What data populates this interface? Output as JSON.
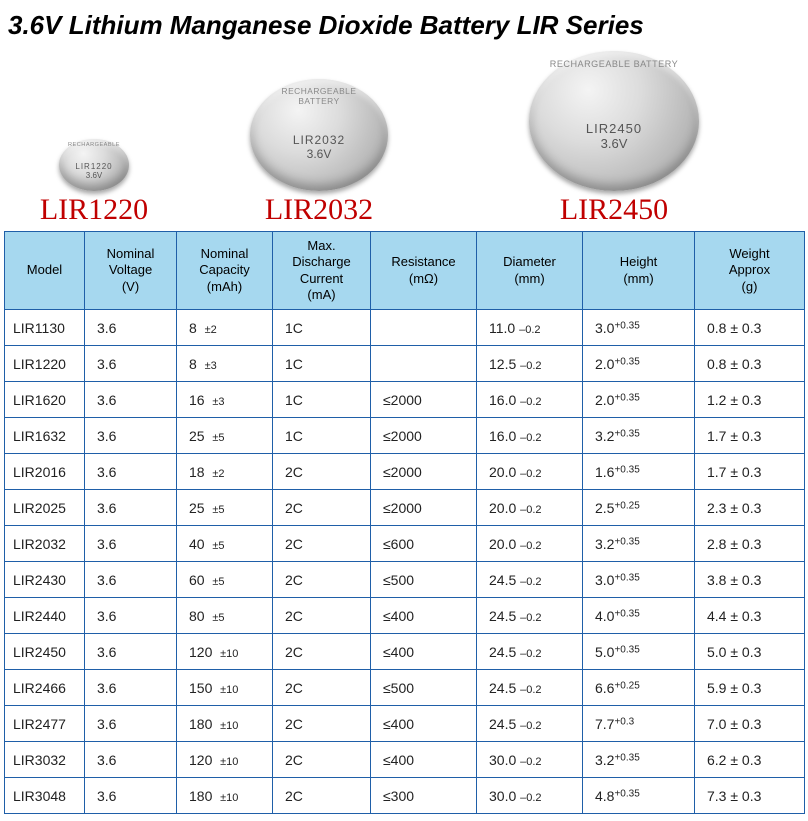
{
  "title": "3.6V Lithium Manganese Dioxide Battery LIR Series",
  "batteries": [
    {
      "label": "LIR1220",
      "coin_model": "LIR1220",
      "coin_volt": "3.6V",
      "arc": "RECHARGEABLE"
    },
    {
      "label": "LIR2032",
      "coin_model": "LIR2032",
      "coin_volt": "3.6V",
      "arc": "RECHARGEABLE BATTERY"
    },
    {
      "label": "LIR2450",
      "coin_model": "LIR2450",
      "coin_volt": "3.6V",
      "arc": "RECHARGEABLE BATTERY"
    }
  ],
  "headers": {
    "model": "Model",
    "voltage": "Nominal\nVoltage\n(V)",
    "capacity": "Nominal\nCapacity\n(mAh)",
    "discharge": "Max.\nDischarge\nCurrent\n(mA)",
    "resistance": "Resistance\n(mΩ)",
    "diameter": "Diameter\n(mm)",
    "height": "Height\n(mm)",
    "weight": "Weight\nApprox\n(g)"
  },
  "rows": [
    {
      "model": "LIR1130",
      "v": "3.6",
      "cap": "8",
      "cap_tol": "±2",
      "dis": "1C",
      "res": "",
      "dia": "11.0",
      "dia_tol": "–0.2",
      "h": "3.0",
      "h_tol": "+0.35",
      "w": "0.8 ± 0.3"
    },
    {
      "model": "LIR1220",
      "v": "3.6",
      "cap": "8",
      "cap_tol": "±3",
      "dis": "1C",
      "res": "",
      "dia": "12.5",
      "dia_tol": "–0.2",
      "h": "2.0",
      "h_tol": "+0.35",
      "w": "0.8 ± 0.3"
    },
    {
      "model": "LIR1620",
      "v": "3.6",
      "cap": "16",
      "cap_tol": "±3",
      "dis": "1C",
      "res": "≤2000",
      "dia": "16.0",
      "dia_tol": "–0.2",
      "h": "2.0",
      "h_tol": "+0.35",
      "w": "1.2 ± 0.3"
    },
    {
      "model": "LIR1632",
      "v": "3.6",
      "cap": "25",
      "cap_tol": "±5",
      "dis": "1C",
      "res": "≤2000",
      "dia": "16.0",
      "dia_tol": "–0.2",
      "h": "3.2",
      "h_tol": "+0.35",
      "w": "1.7 ± 0.3"
    },
    {
      "model": "LIR2016",
      "v": "3.6",
      "cap": "18",
      "cap_tol": "±2",
      "dis": "2C",
      "res": "≤2000",
      "dia": "20.0",
      "dia_tol": "–0.2",
      "h": "1.6",
      "h_tol": "+0.35",
      "w": "1.7 ± 0.3"
    },
    {
      "model": "LIR2025",
      "v": "3.6",
      "cap": "25",
      "cap_tol": "±5",
      "dis": "2C",
      "res": "≤2000",
      "dia": "20.0",
      "dia_tol": "–0.2",
      "h": "2.5",
      "h_tol": "+0.25",
      "w": "2.3 ± 0.3"
    },
    {
      "model": "LIR2032",
      "v": "3.6",
      "cap": "40",
      "cap_tol": "±5",
      "dis": "2C",
      "res": "≤600",
      "dia": "20.0",
      "dia_tol": "–0.2",
      "h": "3.2",
      "h_tol": "+0.35",
      "w": "2.8 ± 0.3"
    },
    {
      "model": "LIR2430",
      "v": "3.6",
      "cap": "60",
      "cap_tol": "±5",
      "dis": "2C",
      "res": "≤500",
      "dia": "24.5",
      "dia_tol": "–0.2",
      "h": "3.0",
      "h_tol": "+0.35",
      "w": "3.8 ± 0.3"
    },
    {
      "model": "LIR2440",
      "v": "3.6",
      "cap": "80",
      "cap_tol": "±5",
      "dis": "2C",
      "res": "≤400",
      "dia": "24.5",
      "dia_tol": "–0.2",
      "h": "4.0",
      "h_tol": "+0.35",
      "w": "4.4 ± 0.3"
    },
    {
      "model": "LIR2450",
      "v": "3.6",
      "cap": "120",
      "cap_tol": "±10",
      "dis": "2C",
      "res": "≤400",
      "dia": "24.5",
      "dia_tol": "–0.2",
      "h": "5.0",
      "h_tol": "+0.35",
      "w": "5.0 ± 0.3"
    },
    {
      "model": "LIR2466",
      "v": "3.6",
      "cap": "150",
      "cap_tol": "±10",
      "dis": "2C",
      "res": "≤500",
      "dia": "24.5",
      "dia_tol": "–0.2",
      "h": "6.6",
      "h_tol": "+0.25",
      "w": "5.9 ± 0.3"
    },
    {
      "model": "LIR2477",
      "v": "3.6",
      "cap": "180",
      "cap_tol": "±10",
      "dis": "2C",
      "res": "≤400",
      "dia": "24.5",
      "dia_tol": "–0.2",
      "h": "7.7",
      "h_tol": "+0.3",
      "w": "7.0 ± 0.3"
    },
    {
      "model": "LIR3032",
      "v": "3.6",
      "cap": "120",
      "cap_tol": "±10",
      "dis": "2C",
      "res": "≤400",
      "dia": "30.0",
      "dia_tol": "–0.2",
      "h": "3.2",
      "h_tol": "+0.35",
      "w": "6.2 ± 0.3"
    },
    {
      "model": "LIR3048",
      "v": "3.6",
      "cap": "180",
      "cap_tol": "±10",
      "dis": "2C",
      "res": "≤300",
      "dia": "30.0",
      "dia_tol": "–0.2",
      "h": "4.8",
      "h_tol": "+0.35",
      "w": "7.3 ± 0.3"
    }
  ],
  "style": {
    "title_fontsize": 26,
    "header_bg": "#a6d8ef",
    "border_color": "#1f5fa8",
    "label_color": "#c00000",
    "body_font": "Arial, sans-serif",
    "label_font": "Times New Roman, serif"
  }
}
